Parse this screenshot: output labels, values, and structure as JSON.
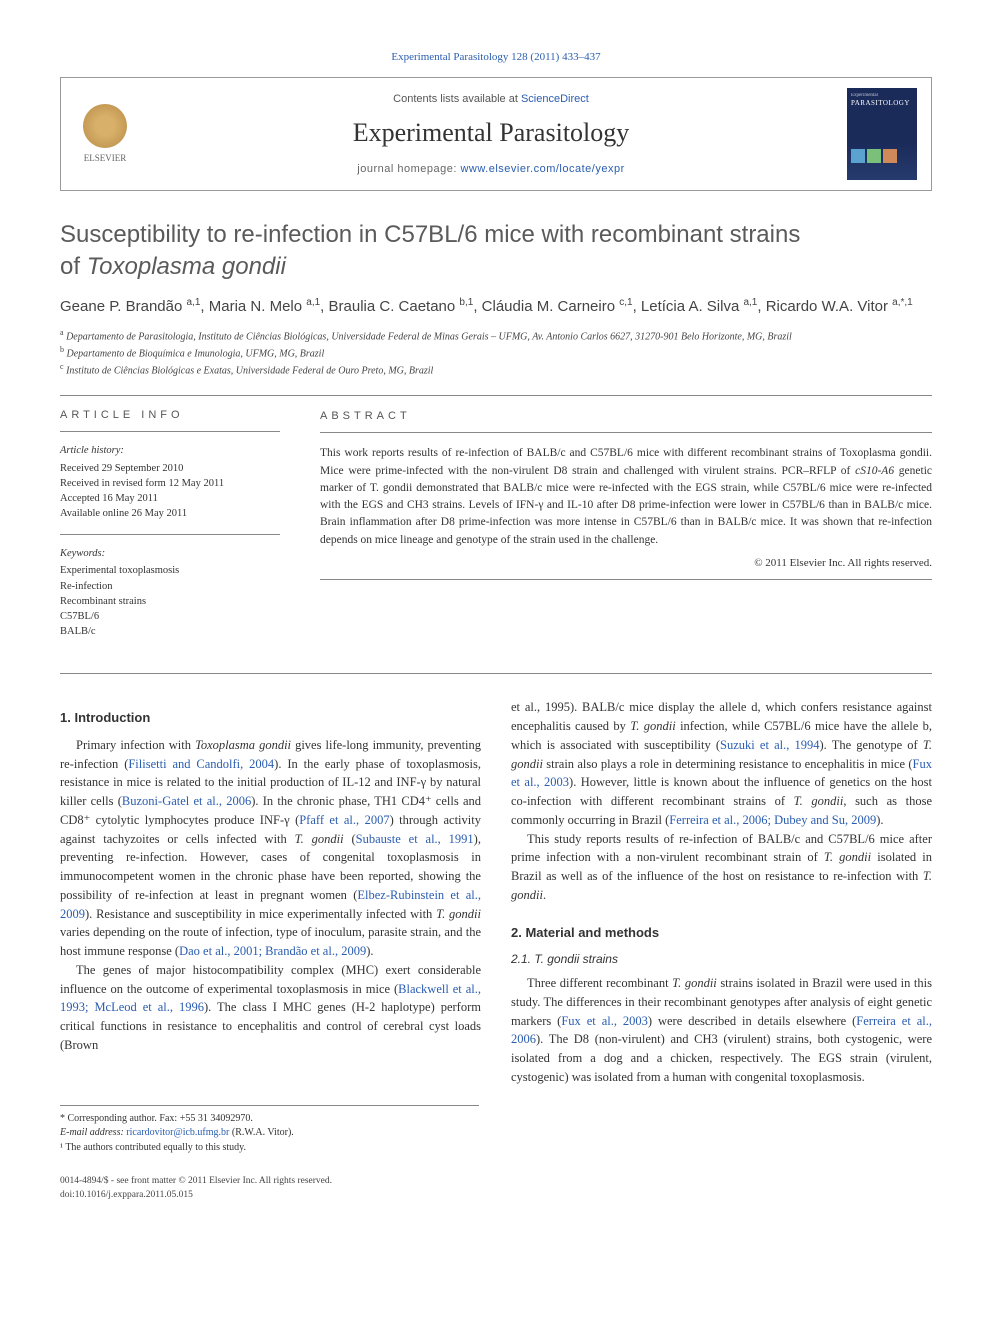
{
  "journal_ref": "Experimental Parasitology 128 (2011) 433–437",
  "header": {
    "contents_prefix": "Contents lists available at ",
    "contents_link": "ScienceDirect",
    "journal_name": "Experimental Parasitology",
    "homepage_prefix": "journal homepage: ",
    "homepage_url": "www.elsevier.com/locate/yexpr",
    "logo_text": "ELSEVIER",
    "cover_label": "PARASITOLOGY"
  },
  "title_line1": "Susceptibility to re-infection in C57BL/6 mice with recombinant strains",
  "title_line2_prefix": "of ",
  "title_line2_species": "Toxoplasma gondii",
  "authors_html": "Geane P. Brandão <sup>a,1</sup>, Maria N. Melo <sup>a,1</sup>, Braulia C. Caetano <sup>b,1</sup>, Cláudia M. Carneiro <sup>c,1</sup>, Letícia A. Silva <sup>a,1</sup>, Ricardo W.A. Vitor <sup>a,*,1</sup>",
  "affiliations": {
    "a": "Departamento de Parasitologia, Instituto de Ciências Biológicas, Universidade Federal de Minas Gerais – UFMG, Av. Antonio Carlos 6627, 31270-901 Belo Horizonte, MG, Brazil",
    "b": "Departamento de Bioquímica e Imunologia, UFMG, MG, Brazil",
    "c": "Instituto de Ciências Biológicas e Exatas, Universidade Federal de Ouro Preto, MG, Brazil"
  },
  "article_info": {
    "label": "ARTICLE INFO",
    "history_heading": "Article history:",
    "history": [
      "Received 29 September 2010",
      "Received in revised form 12 May 2011",
      "Accepted 16 May 2011",
      "Available online 26 May 2011"
    ],
    "keywords_heading": "Keywords:",
    "keywords": [
      "Experimental toxoplasmosis",
      "Re-infection",
      "Recombinant strains",
      "C57BL/6",
      "BALB/c"
    ]
  },
  "abstract": {
    "label": "ABSTRACT",
    "text": "This work reports results of re-infection of BALB/c and C57BL/6 mice with different recombinant strains of Toxoplasma gondii. Mice were prime-infected with the non-virulent D8 strain and challenged with virulent strains. PCR–RFLP of cS10-A6 genetic marker of T. gondii demonstrated that BALB/c mice were re-infected with the EGS strain, while C57BL/6 mice were re-infected with the EGS and CH3 strains. Levels of IFN-γ and IL-10 after D8 prime-infection were lower in C57BL/6 than in BALB/c mice. Brain inflammation after D8 prime-infection was more intense in C57BL/6 than in BALB/c mice. It was shown that re-infection depends on mice lineage and genotype of the strain used in the challenge.",
    "copyright": "© 2011 Elsevier Inc. All rights reserved."
  },
  "sections": {
    "intro_heading": "1. Introduction",
    "intro_p1": "Primary infection with Toxoplasma gondii gives life-long immunity, preventing re-infection (Filisetti and Candolfi, 2004). In the early phase of toxoplasmosis, resistance in mice is related to the initial production of IL-12 and INF-γ by natural killer cells (Buzoni-Gatel et al., 2006). In the chronic phase, TH1 CD4⁺ cells and CD8⁺ cytolytic lymphocytes produce INF-γ (Pfaff et al., 2007) through activity against tachyzoites or cells infected with T. gondii (Subauste et al., 1991), preventing re-infection. However, cases of congenital toxoplasmosis in immunocompetent women in the chronic phase have been reported, showing the possibility of re-infection at least in pregnant women (Elbez-Rubinstein et al., 2009). Resistance and susceptibility in mice experimentally infected with T. gondii varies depending on the route of infection, type of inoculum, parasite strain, and the host immune response (Dao et al., 2001; Brandão et al., 2009).",
    "intro_p2": "The genes of major histocompatibility complex (MHC) exert considerable influence on the outcome of experimental toxoplasmosis in mice (Blackwell et al., 1993; McLeod et al., 1996). The class I MHC genes (H-2 haplotype) perform critical functions in resistance to encephalitis and control of cerebral cyst loads (Brown",
    "intro_p3": "et al., 1995). BALB/c mice display the allele d, which confers resistance against encephalitis caused by T. gondii infection, while C57BL/6 mice have the allele b, which is associated with susceptibility (Suzuki et al., 1994). The genotype of T. gondii strain also plays a role in determining resistance to encephalitis in mice (Fux et al., 2003). However, little is known about the influence of genetics on the host co-infection with different recombinant strains of T. gondii, such as those commonly occurring in Brazil (Ferreira et al., 2006; Dubey and Su, 2009).",
    "intro_p4": "This study reports results of re-infection of BALB/c and C57BL/6 mice after prime infection with a non-virulent recombinant strain of T. gondii isolated in Brazil as well as of the influence of the host on resistance to re-infection with T. gondii.",
    "mm_heading": "2. Material and methods",
    "mm_sub1": "2.1. T. gondii strains",
    "mm_p1": "Three different recombinant T. gondii strains isolated in Brazil were used in this study. The differences in their recombinant genotypes after analysis of eight genetic markers (Fux et al., 2003) were described in details elsewhere (Ferreira et al., 2006). The D8 (non-virulent) and CH3 (virulent) strains, both cystogenic, were isolated from a dog and a chicken, respectively. The EGS strain (virulent, cystogenic) was isolated from a human with congenital toxoplasmosis."
  },
  "footnotes": {
    "corr": "* Corresponding author. Fax: +55 31 34092970.",
    "email_label": "E-mail address:",
    "email": "ricardovitor@icb.ufmg.br",
    "email_who": "(R.W.A. Vitor).",
    "equal": "¹ The authors contributed equally to this study."
  },
  "footer": {
    "left": "0014-4894/$ - see front matter © 2011 Elsevier Inc. All rights reserved.",
    "doi": "doi:10.1016/j.exppara.2011.05.015"
  },
  "colors": {
    "link": "#2a5db0",
    "text": "#333333",
    "muted": "#555555",
    "rule": "#888888"
  }
}
